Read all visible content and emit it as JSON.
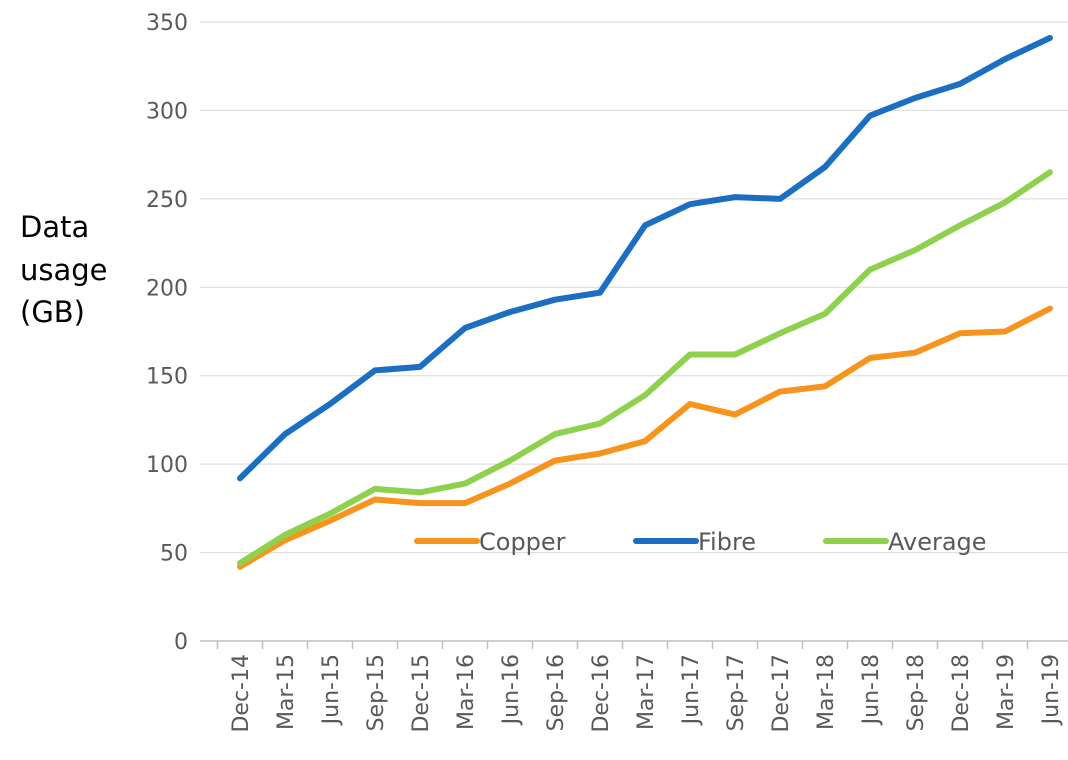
{
  "chart_data": {
    "type": "line",
    "ylabel_lines": [
      "Data",
      "usage",
      "(GB)"
    ],
    "categories": [
      "Dec-14",
      "Mar-15",
      "Jun-15",
      "Sep-15",
      "Dec-15",
      "Mar-16",
      "Jun-16",
      "Sep-16",
      "Dec-16",
      "Mar-17",
      "Jun-17",
      "Sep-17",
      "Dec-17",
      "Mar-18",
      "Jun-18",
      "Sep-18",
      "Dec-18",
      "Mar-19",
      "Jun-19"
    ],
    "ylim": [
      0,
      350
    ],
    "yticks": [
      0,
      50,
      100,
      150,
      200,
      250,
      300,
      350
    ],
    "grid": true,
    "legend_position": "lower-right inside",
    "series": [
      {
        "name": "Copper",
        "color": "#F7941D",
        "values": [
          42,
          57,
          68,
          80,
          78,
          78,
          89,
          102,
          106,
          113,
          134,
          128,
          141,
          144,
          160,
          163,
          174,
          175,
          188
        ]
      },
      {
        "name": "Fibre",
        "color": "#1B6EC2",
        "values": [
          92,
          117,
          134,
          153,
          155,
          177,
          186,
          193,
          197,
          235,
          247,
          251,
          250,
          268,
          297,
          307,
          315,
          329,
          341
        ]
      },
      {
        "name": "Average",
        "color": "#8FD14F",
        "values": [
          44,
          60,
          72,
          86,
          84,
          89,
          102,
          117,
          123,
          139,
          162,
          162,
          174,
          185,
          210,
          221,
          235,
          248,
          265
        ]
      }
    ]
  }
}
